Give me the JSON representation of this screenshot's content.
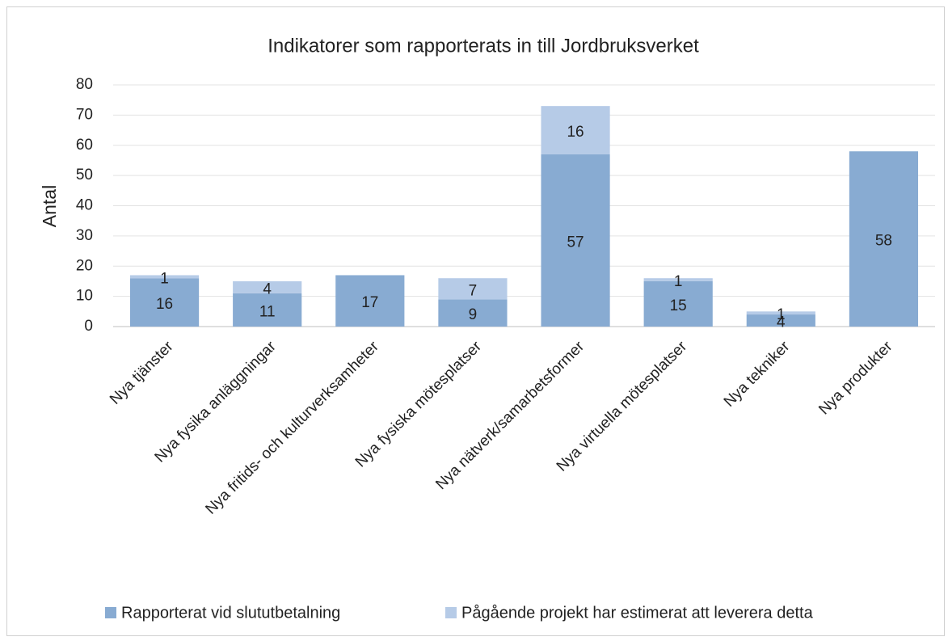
{
  "chart_data": {
    "type": "stacked_bar",
    "title": "Indikatorer som rapporterats in till Jordbruksverket",
    "y_label": "Antal",
    "categories": [
      "Nya tjänster",
      "Nya fysika anläggningar",
      "Nya fritids- och kulturverksamheter",
      "Nya fysiska mötesplatser",
      "Nya nätverk/samarbetsformer",
      "Nya virtuella mötesplatser",
      "Nya tekniker",
      "Nya produkter"
    ],
    "series": [
      {
        "name": "Rapporterat vid slututbetalning",
        "color": "#88abd2",
        "values": [
          16,
          11,
          17,
          9,
          57,
          15,
          4,
          58
        ]
      },
      {
        "name": "Pågående projekt har estimerat att leverera detta",
        "color": "#b6cbe7",
        "values": [
          1,
          4,
          null,
          7,
          16,
          1,
          1,
          null
        ]
      }
    ],
    "ylim": [
      0,
      80
    ],
    "yticks": [
      0,
      10,
      20,
      30,
      40,
      50,
      60,
      70,
      80
    ],
    "grid": true,
    "legend": "bottom"
  }
}
